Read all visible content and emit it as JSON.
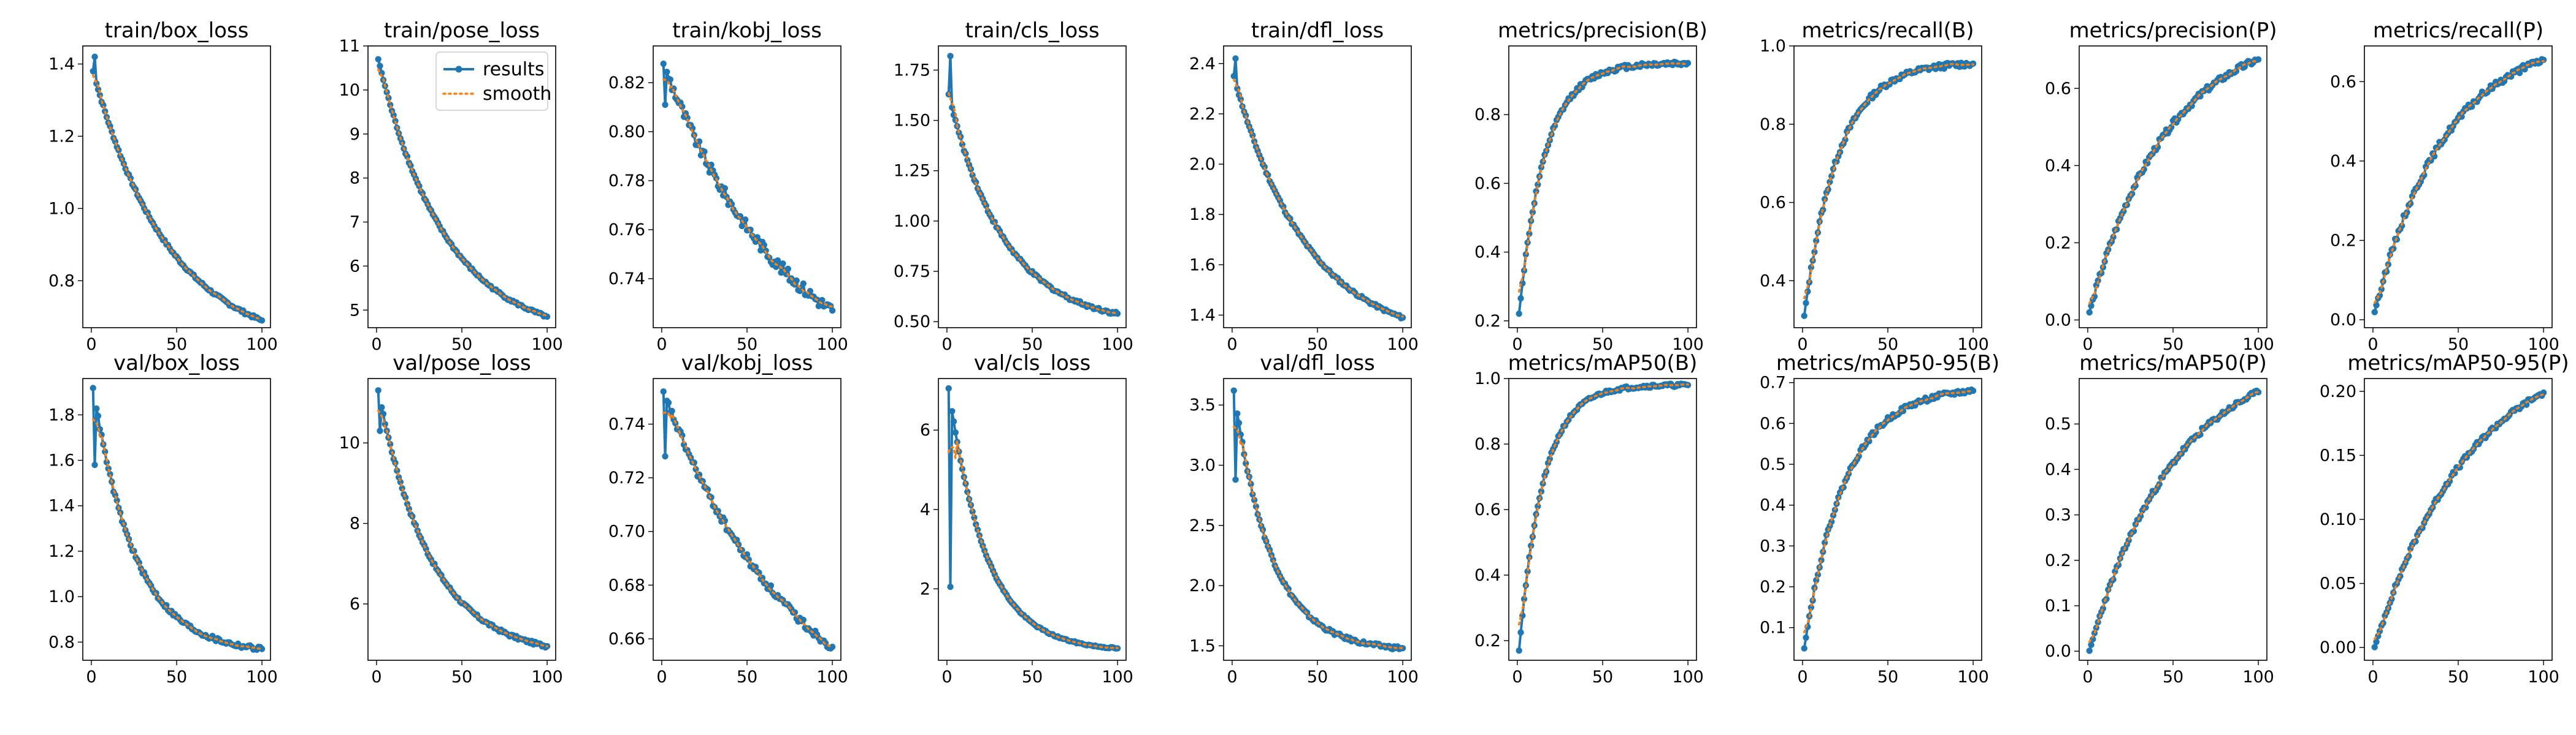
{
  "figure": {
    "legend": {
      "results_label": "results",
      "smooth_label": "smooth",
      "placement": "upper-right of panel 2"
    },
    "colors": {
      "results": "#1f77b4",
      "smooth": "#ff7f0e",
      "axes": "#000000",
      "background": "#ffffff"
    }
  },
  "chart_data": [
    {
      "type": "line",
      "title": "train/box_loss",
      "xlim": [
        -5,
        105
      ],
      "ylim": [
        0.67,
        1.45
      ],
      "xticks": [
        0,
        50,
        100
      ],
      "yticks": [
        0.8,
        1.0,
        1.2,
        1.4
      ],
      "x_range": [
        1,
        100
      ],
      "start": 1.38,
      "peak": 1.42,
      "end": 0.69,
      "shape": "decay",
      "k": 2.2,
      "noise": 0.004,
      "grid": false,
      "legend": false
    },
    {
      "type": "line",
      "title": "train/pose_loss",
      "xlim": [
        -5,
        105
      ],
      "ylim": [
        4.6,
        11.0
      ],
      "xticks": [
        0,
        50,
        100
      ],
      "yticks": [
        5,
        6,
        7,
        8,
        9,
        10,
        11
      ],
      "x_range": [
        1,
        100
      ],
      "start": 10.7,
      "end": 4.85,
      "shape": "decay",
      "k": 2.5,
      "noise": 0.03,
      "grid": false,
      "legend": true
    },
    {
      "type": "line",
      "title": "train/kobj_loss",
      "xlim": [
        -5,
        105
      ],
      "ylim": [
        0.72,
        0.835
      ],
      "xticks": [
        0,
        50,
        100
      ],
      "yticks": [
        0.74,
        0.76,
        0.78,
        0.8,
        0.82
      ],
      "x_range": [
        1,
        100
      ],
      "start": 0.828,
      "second": 0.811,
      "end": 0.727,
      "shape": "decay",
      "k": 1.4,
      "noise": 0.0025,
      "grid": false,
      "legend": false
    },
    {
      "type": "line",
      "title": "train/cls_loss",
      "xlim": [
        -5,
        105
      ],
      "ylim": [
        0.47,
        1.87
      ],
      "xticks": [
        0,
        50,
        100
      ],
      "yticks": [
        0.5,
        0.75,
        1.0,
        1.25,
        1.5,
        1.75
      ],
      "x_range": [
        1,
        100
      ],
      "start": 1.63,
      "peak": 1.82,
      "end": 0.54,
      "shape": "decay",
      "k": 3.0,
      "noise": 0.008,
      "grid": false,
      "legend": false
    },
    {
      "type": "line",
      "title": "train/dfl_loss",
      "xlim": [
        -5,
        105
      ],
      "ylim": [
        1.35,
        2.47
      ],
      "xticks": [
        0,
        50,
        100
      ],
      "yticks": [
        1.4,
        1.6,
        1.8,
        2.0,
        2.2,
        2.4
      ],
      "x_range": [
        1,
        100
      ],
      "start": 2.35,
      "peak": 2.42,
      "end": 1.39,
      "shape": "decay",
      "k": 2.3,
      "noise": 0.006,
      "grid": false,
      "legend": false
    },
    {
      "type": "line",
      "title": "metrics/precision(B)",
      "xlim": [
        -5,
        105
      ],
      "ylim": [
        0.18,
        1.0
      ],
      "xticks": [
        0,
        50,
        100
      ],
      "yticks": [
        0.2,
        0.4,
        0.6,
        0.8
      ],
      "x_range": [
        1,
        100
      ],
      "start": 0.22,
      "end": 0.95,
      "shape": "rise",
      "k": 6.5,
      "noise": 0.007,
      "grid": false,
      "legend": false
    },
    {
      "type": "line",
      "title": "metrics/recall(B)",
      "xlim": [
        -5,
        105
      ],
      "ylim": [
        0.28,
        1.0
      ],
      "xticks": [
        0,
        50,
        100
      ],
      "yticks": [
        0.4,
        0.6,
        0.8,
        1.0
      ],
      "x_range": [
        1,
        100
      ],
      "start": 0.31,
      "end": 0.955,
      "shape": "rise",
      "k": 5.0,
      "noise": 0.007,
      "grid": false,
      "legend": false
    },
    {
      "type": "line",
      "title": "metrics/precision(P)",
      "xlim": [
        -5,
        105
      ],
      "ylim": [
        -0.02,
        0.71
      ],
      "xticks": [
        0,
        50,
        100
      ],
      "yticks": [
        0.0,
        0.2,
        0.4,
        0.6
      ],
      "x_range": [
        1,
        100
      ],
      "start": 0.02,
      "end": 0.675,
      "shape": "rise",
      "k": 2.2,
      "noise": 0.008,
      "grid": false,
      "legend": false
    },
    {
      "type": "line",
      "title": "metrics/recall(P)",
      "xlim": [
        -5,
        105
      ],
      "ylim": [
        -0.02,
        0.69
      ],
      "xticks": [
        0,
        50,
        100
      ],
      "yticks": [
        0.0,
        0.2,
        0.4,
        0.6
      ],
      "x_range": [
        1,
        100
      ],
      "start": 0.02,
      "end": 0.655,
      "shape": "rise",
      "k": 2.4,
      "noise": 0.008,
      "grid": false,
      "legend": false
    },
    {
      "type": "line",
      "title": "val/box_loss",
      "xlim": [
        -5,
        105
      ],
      "ylim": [
        0.72,
        1.96
      ],
      "xticks": [
        0,
        50,
        100
      ],
      "yticks": [
        0.8,
        1.0,
        1.2,
        1.4,
        1.6,
        1.8
      ],
      "x_range": [
        1,
        100
      ],
      "start": 1.92,
      "second": 1.58,
      "end": 0.77,
      "shape": "decay",
      "k": 4.0,
      "noise": 0.01,
      "grid": false,
      "legend": false
    },
    {
      "type": "line",
      "title": "val/pose_loss",
      "xlim": [
        -5,
        105
      ],
      "ylim": [
        4.6,
        11.6
      ],
      "xticks": [
        0,
        50,
        100
      ],
      "yticks": [
        6,
        8,
        10
      ],
      "x_range": [
        1,
        100
      ],
      "start": 11.3,
      "second": 10.3,
      "end": 4.95,
      "shape": "decay",
      "k": 3.2,
      "noise": 0.04,
      "grid": false,
      "legend": false
    },
    {
      "type": "line",
      "title": "val/kobj_loss",
      "xlim": [
        -5,
        105
      ],
      "ylim": [
        0.652,
        0.757
      ],
      "xticks": [
        0,
        50,
        100
      ],
      "yticks": [
        0.66,
        0.68,
        0.7,
        0.72,
        0.74
      ],
      "x_range": [
        1,
        100
      ],
      "start": 0.752,
      "second": 0.728,
      "end": 0.657,
      "shape": "decay",
      "k": 1.3,
      "noise": 0.0015,
      "grid": false,
      "legend": false
    },
    {
      "type": "line",
      "title": "val/cls_loss",
      "xlim": [
        -5,
        105
      ],
      "ylim": [
        0.2,
        7.3
      ],
      "xticks": [
        0,
        50,
        100
      ],
      "yticks": [
        2,
        4,
        6
      ],
      "x_range": [
        1,
        100
      ],
      "start": 7.05,
      "second": 2.05,
      "end": 0.5,
      "shape": "decay",
      "k": 4.5,
      "noise": 0.02,
      "grid": false,
      "legend": false
    },
    {
      "type": "line",
      "title": "val/dfl_loss",
      "xlim": [
        -5,
        105
      ],
      "ylim": [
        1.38,
        3.72
      ],
      "xticks": [
        0,
        50,
        100
      ],
      "yticks": [
        1.5,
        2.0,
        2.5,
        3.0,
        3.5
      ],
      "x_range": [
        1,
        100
      ],
      "start": 3.62,
      "second": 2.88,
      "end": 1.48,
      "shape": "decay",
      "k": 4.5,
      "noise": 0.015,
      "grid": false,
      "legend": false
    },
    {
      "type": "line",
      "title": "metrics/mAP50(B)",
      "xlim": [
        -5,
        105
      ],
      "ylim": [
        0.14,
        1.0
      ],
      "xticks": [
        0,
        50,
        100
      ],
      "yticks": [
        0.2,
        0.4,
        0.6,
        0.8,
        1.0
      ],
      "x_range": [
        1,
        100
      ],
      "start": 0.17,
      "end": 0.98,
      "shape": "rise",
      "k": 7.0,
      "noise": 0.005,
      "grid": false,
      "legend": false
    },
    {
      "type": "line",
      "title": "metrics/mAP50-95(B)",
      "xlim": [
        -5,
        105
      ],
      "ylim": [
        0.02,
        0.71
      ],
      "xticks": [
        0,
        50,
        100
      ],
      "yticks": [
        0.1,
        0.2,
        0.3,
        0.4,
        0.5,
        0.6,
        0.7
      ],
      "x_range": [
        1,
        100
      ],
      "start": 0.05,
      "end": 0.68,
      "shape": "rise",
      "k": 4.2,
      "noise": 0.006,
      "grid": false,
      "legend": false
    },
    {
      "type": "line",
      "title": "metrics/mAP50(P)",
      "xlim": [
        -5,
        105
      ],
      "ylim": [
        -0.02,
        0.6
      ],
      "xticks": [
        0,
        50,
        100
      ],
      "yticks": [
        0.0,
        0.1,
        0.2,
        0.3,
        0.4,
        0.5
      ],
      "x_range": [
        1,
        100
      ],
      "start": 0.0,
      "end": 0.57,
      "shape": "rise",
      "k": 2.0,
      "noise": 0.006,
      "grid": false,
      "legend": false
    },
    {
      "type": "line",
      "title": "metrics/mAP50-95(P)",
      "xlim": [
        -5,
        105
      ],
      "ylim": [
        -0.01,
        0.21
      ],
      "xticks": [
        0,
        50,
        100
      ],
      "yticks": [
        0.0,
        0.05,
        0.1,
        0.15,
        0.2
      ],
      "x_range": [
        1,
        100
      ],
      "start": 0.0,
      "end": 0.199,
      "shape": "rise",
      "k": 1.8,
      "noise": 0.002,
      "grid": false,
      "legend": false
    }
  ]
}
